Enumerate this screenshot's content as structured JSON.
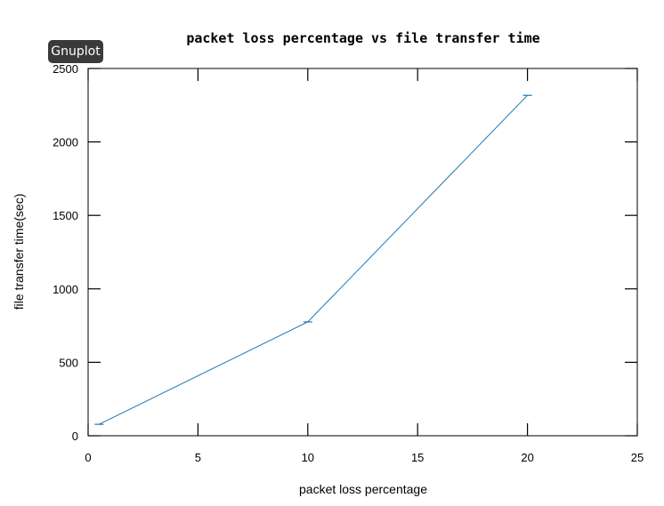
{
  "window": {
    "badge_label": "Gnuplot"
  },
  "chart_data": {
    "type": "line",
    "title": "packet loss percentage vs file transfer time",
    "xlabel": "packet loss percentage",
    "ylabel": "file transfer time(sec)",
    "xlim": [
      0,
      25
    ],
    "ylim": [
      0,
      2500
    ],
    "xticks": [
      0,
      5,
      10,
      15,
      20,
      25
    ],
    "yticks": [
      0,
      500,
      1000,
      1500,
      2000,
      2500
    ],
    "grid": false,
    "series": [
      {
        "color": "#1f77b4",
        "x": [
          0.5,
          10,
          20
        ],
        "y": [
          78,
          775,
          2317
        ]
      }
    ]
  }
}
